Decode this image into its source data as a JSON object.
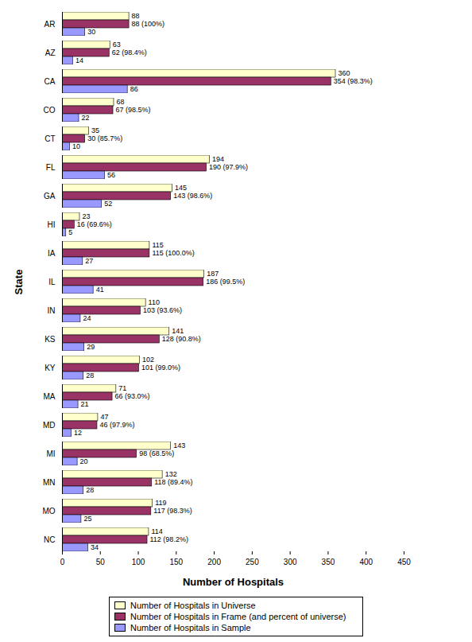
{
  "chart_data": {
    "type": "bar",
    "orientation": "horizontal",
    "data_labels": true,
    "x_label": "Number of Hospitals",
    "y_label": "State",
    "categories": [
      "AR",
      "AZ",
      "CA",
      "CO",
      "CT",
      "FL",
      "GA",
      "HI",
      "IA",
      "IL",
      "IN",
      "KS",
      "KY",
      "MA",
      "MD",
      "MI",
      "MN",
      "MO",
      "NC"
    ],
    "xlim": [
      0,
      450
    ],
    "xticks": [
      0,
      50,
      100,
      150,
      200,
      250,
      300,
      350,
      400,
      450
    ],
    "grid": false,
    "legend": "bottom",
    "series": [
      {
        "name": "Number of Hospitals in Universe",
        "color": "#ffffcc",
        "values": [
          88,
          63,
          360,
          68,
          35,
          194,
          145,
          23,
          115,
          187,
          110,
          141,
          102,
          71,
          47,
          143,
          132,
          119,
          114
        ]
      },
      {
        "name": "Number of Hospitals in Frame (and percent of universe)",
        "color": "#993366",
        "values": [
          88,
          62,
          354,
          67,
          30,
          190,
          143,
          16,
          115,
          186,
          103,
          128,
          101,
          66,
          46,
          98,
          118,
          117,
          112
        ],
        "value_labels": [
          "88 (100%)",
          "62 (98.4%)",
          "354 (98.3%)",
          "67 (98.5%)",
          "30 (85.7%)",
          "190 (97.9%)",
          "143 (98.6%)",
          "16 (69.6%)",
          "115 (100.0%)",
          "186 (99.5%)",
          "103 (93.6%)",
          "128 (90.8%)",
          "101 (99.0%)",
          "66 (93.0%)",
          "46 (97.9%)",
          "98 (68.5%)",
          "118 (89.4%)",
          "117 (98.3%)",
          "112 (98.2%)"
        ]
      },
      {
        "name": "Number of Hospitals in Sample",
        "color": "#9999ff",
        "values": [
          30,
          14,
          86,
          22,
          10,
          56,
          52,
          5,
          27,
          41,
          24,
          29,
          28,
          21,
          12,
          20,
          28,
          25,
          34
        ]
      }
    ]
  }
}
